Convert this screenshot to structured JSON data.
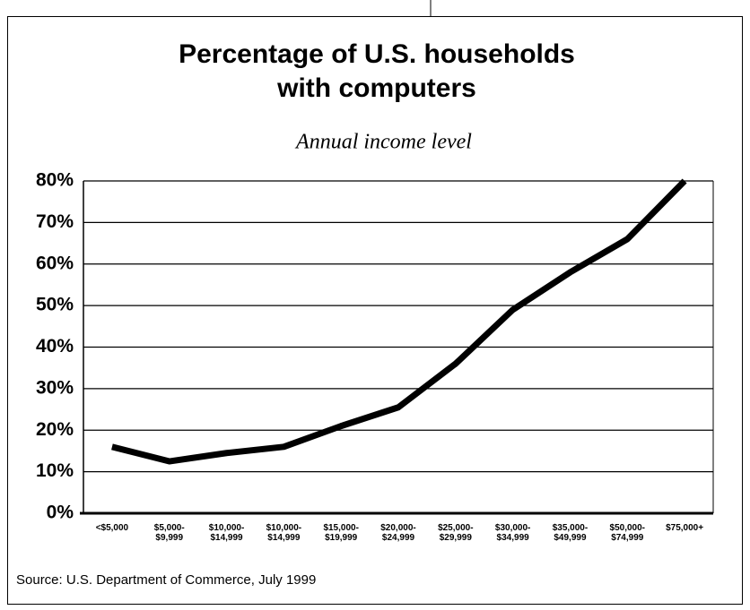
{
  "chart_data": {
    "type": "line",
    "title": [
      "Percentage of U.S. households",
      "with computers"
    ],
    "subtitle": "Annual income level",
    "categories": [
      [
        "<$5,000"
      ],
      [
        "$5,000-",
        "$9,999"
      ],
      [
        "$10,000-",
        "$14,999"
      ],
      [
        "$10,000-",
        "$14,999"
      ],
      [
        "$15,000-",
        "$19,999"
      ],
      [
        "$20,000-",
        "$24,999"
      ],
      [
        "$25,000-",
        "$29,999"
      ],
      [
        "$30,000-",
        "$34,999"
      ],
      [
        "$35,000-",
        "$49,999"
      ],
      [
        "$50,000-",
        "$74,999"
      ],
      [
        "$75,000+"
      ]
    ],
    "values": [
      16,
      12.5,
      14.5,
      16,
      21,
      25.5,
      36,
      49,
      58,
      66,
      80
    ],
    "color": "#000000",
    "ylim": [
      0,
      80
    ],
    "yticks": [
      {
        "value": 0,
        "label": "0%"
      },
      {
        "value": 10,
        "label": "10%"
      },
      {
        "value": 20,
        "label": "20%"
      },
      {
        "value": 30,
        "label": "30%"
      },
      {
        "value": 40,
        "label": "40%"
      },
      {
        "value": 50,
        "label": "50%"
      },
      {
        "value": 60,
        "label": "60%"
      },
      {
        "value": 70,
        "label": "70%"
      },
      {
        "value": 80,
        "label": "80%"
      }
    ],
    "grid": true,
    "source": "Source: U.S. Department of Commerce, July 1999"
  }
}
